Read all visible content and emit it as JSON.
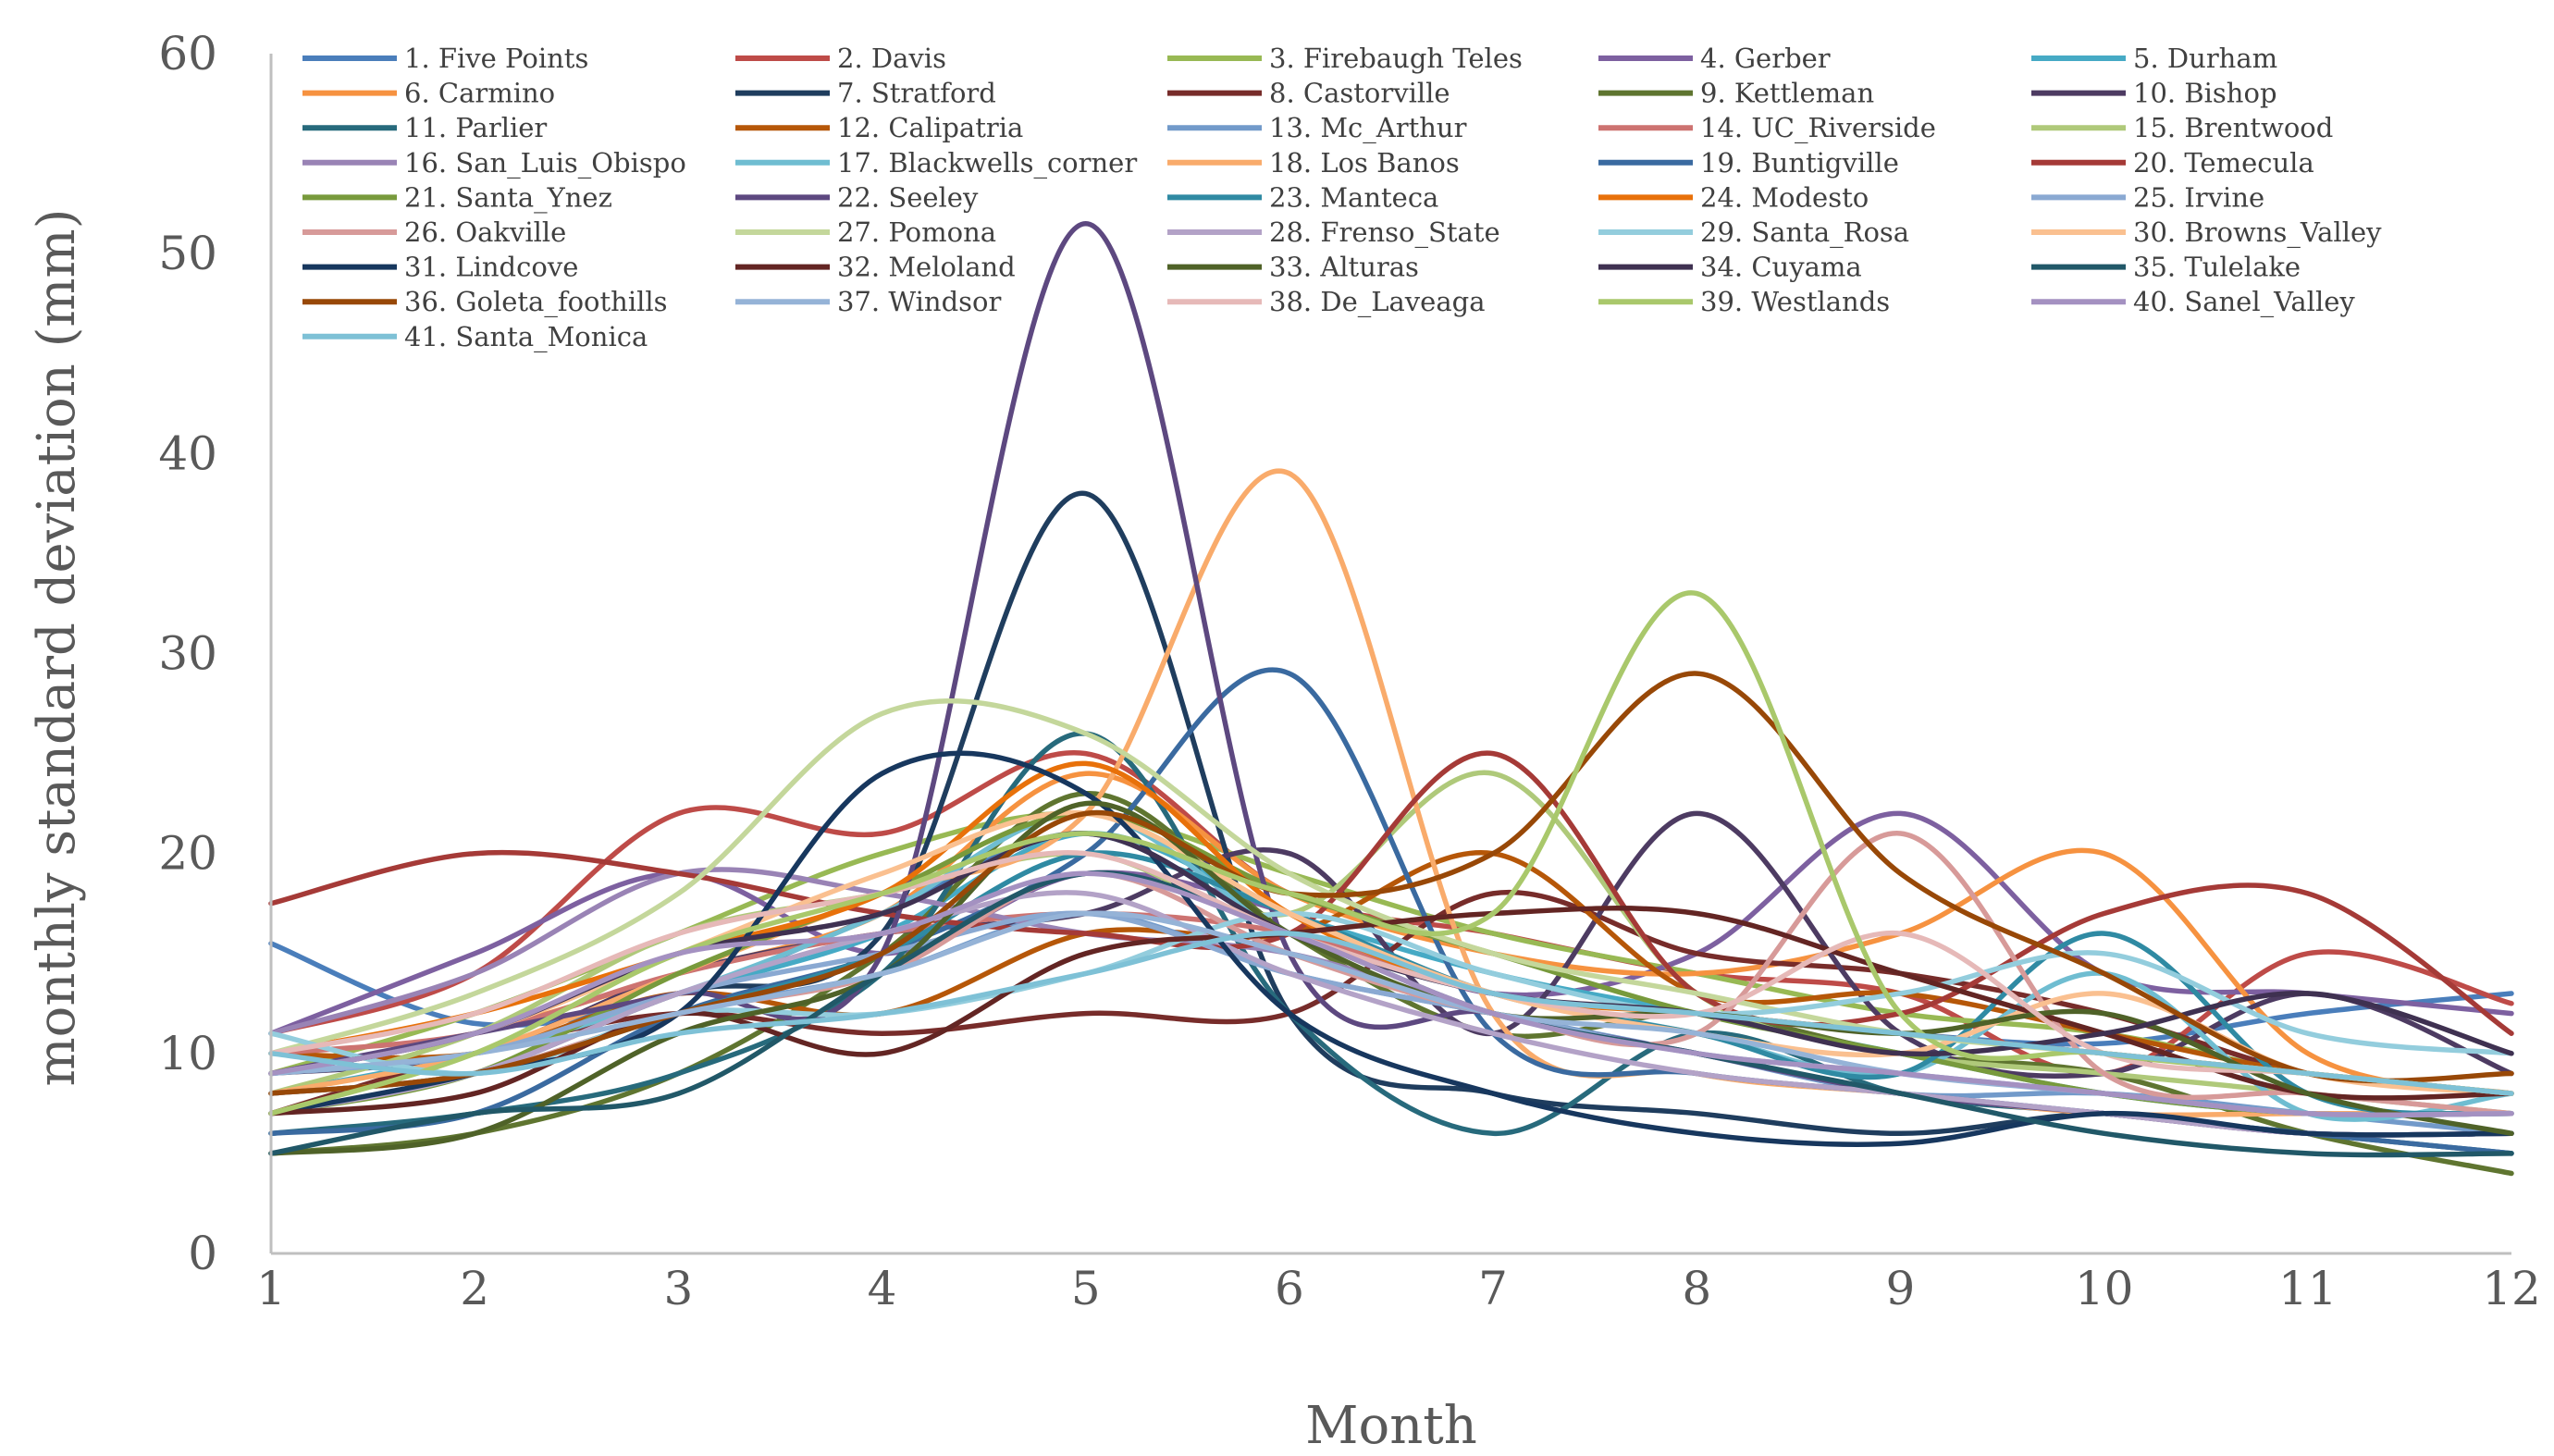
{
  "chart_data": {
    "type": "line",
    "title": "",
    "xlabel": "Month",
    "ylabel": "monthly standard deviation (mm)",
    "xlim": [
      1,
      12
    ],
    "ylim": [
      0,
      60
    ],
    "x": [
      1,
      2,
      3,
      4,
      5,
      6,
      7,
      8,
      9,
      10,
      11,
      12
    ],
    "xticks": [
      "1",
      "2",
      "3",
      "4",
      "5",
      "6",
      "7",
      "8",
      "9",
      "10",
      "11",
      "12"
    ],
    "yticks": [
      "0",
      "10",
      "20",
      "30",
      "40",
      "50",
      "60"
    ],
    "grid": false,
    "legend_position": "top",
    "series": [
      {
        "name": "1. Five Points",
        "color": "#4a7ebb",
        "values": [
          15.5,
          11.5,
          13,
          17,
          21,
          16,
          13,
          12,
          11,
          10.5,
          12,
          13
        ]
      },
      {
        "name": "2. Davis",
        "color": "#be4b48",
        "values": [
          11,
          14,
          22,
          21,
          25,
          18,
          16,
          14,
          13,
          9,
          15,
          12.5
        ]
      },
      {
        "name": "3. Firebaugh Teles",
        "color": "#98b954",
        "values": [
          9,
          12,
          16,
          20,
          22,
          19,
          16,
          14,
          12,
          11,
          9,
          8
        ]
      },
      {
        "name": "4. Gerber",
        "color": "#7d60a0",
        "values": [
          11,
          15,
          19,
          15,
          19,
          17,
          13,
          15,
          22,
          14,
          13,
          12
        ]
      },
      {
        "name": "5. Durham",
        "color": "#46aac5",
        "values": [
          8,
          10,
          13,
          16,
          21,
          17,
          14,
          12,
          10,
          8,
          7,
          7
        ]
      },
      {
        "name": "6. Carmino",
        "color": "#f69240",
        "values": [
          9,
          11,
          14,
          17,
          24,
          18,
          15,
          14,
          16,
          20,
          10,
          8
        ]
      },
      {
        "name": "7. Stratford",
        "color": "#1f3d5e",
        "values": [
          7,
          9,
          13,
          16,
          38,
          12,
          8,
          7,
          6,
          7,
          6,
          6
        ]
      },
      {
        "name": "8. Castorville",
        "color": "#772c2a",
        "values": [
          7,
          10,
          12,
          11,
          12,
          12,
          18,
          15,
          14,
          12,
          9,
          8
        ]
      },
      {
        "name": "9. Kettleman",
        "color": "#5f7530",
        "values": [
          5,
          6,
          9,
          15,
          23,
          16,
          11,
          12,
          10,
          9,
          6,
          4
        ]
      },
      {
        "name": "10. Bishop",
        "color": "#4d3b62",
        "values": [
          9,
          10,
          14,
          16,
          17,
          20,
          11,
          22,
          11,
          9,
          13,
          9
        ]
      },
      {
        "name": "11. Parlier",
        "color": "#276a7c",
        "values": [
          6,
          7,
          9,
          14,
          26,
          12,
          6,
          11,
          8,
          7,
          6,
          5
        ]
      },
      {
        "name": "12. Calipatria",
        "color": "#b65708",
        "values": [
          10,
          10,
          13,
          12,
          16,
          16,
          20,
          13,
          13,
          11,
          9,
          8
        ]
      },
      {
        "name": "13. Mc_Arthur",
        "color": "#729aca",
        "values": [
          8,
          9,
          12,
          14,
          17,
          14,
          12,
          10,
          8,
          8,
          7,
          6
        ]
      },
      {
        "name": "14. UC_Riverside",
        "color": "#cd7371",
        "values": [
          10,
          11,
          14,
          16,
          17,
          16,
          13,
          12,
          11,
          10,
          9,
          8
        ]
      },
      {
        "name": "15. Brentwood",
        "color": "#afc97a",
        "values": [
          8,
          11,
          16,
          18,
          20,
          17,
          24,
          13,
          10,
          9,
          8,
          7
        ]
      },
      {
        "name": "16. San_Luis_Obispo",
        "color": "#9983b5",
        "values": [
          11,
          14,
          19,
          18,
          16,
          15,
          12,
          10,
          8,
          7,
          6,
          6
        ]
      },
      {
        "name": "17. Blackwells_corner",
        "color": "#6fbdd1",
        "values": [
          9,
          10,
          13,
          17,
          22,
          16,
          13,
          11,
          9,
          14,
          7,
          8
        ]
      },
      {
        "name": "18. Los Banos",
        "color": "#f9ab6b",
        "values": [
          8,
          10,
          14,
          18,
          22,
          39,
          12,
          9,
          8,
          7,
          7,
          7
        ]
      },
      {
        "name": "19. Buntigville",
        "color": "#3a6aa0",
        "values": [
          6,
          7,
          12,
          15,
          20,
          29,
          11,
          9,
          8,
          7,
          6,
          5
        ]
      },
      {
        "name": "20. Temecula",
        "color": "#a53a37",
        "values": [
          17.5,
          20,
          19,
          17,
          16,
          16,
          25,
          13,
          12,
          17,
          18,
          11
        ]
      },
      {
        "name": "21. Santa_Ynez",
        "color": "#789a3c",
        "values": [
          7,
          9,
          14,
          18,
          22,
          18,
          15,
          12,
          10,
          8,
          7,
          7
        ]
      },
      {
        "name": "22. Seeley",
        "color": "#5d4880",
        "values": [
          9,
          11,
          13,
          15,
          51.5,
          15,
          12,
          10,
          8,
          7,
          6,
          6
        ]
      },
      {
        "name": "23. Manteca",
        "color": "#2f8aa3",
        "values": [
          8,
          9,
          12,
          15,
          20,
          17,
          13,
          11,
          9,
          16,
          8,
          7
        ]
      },
      {
        "name": "24. Modesto",
        "color": "#e8710a",
        "values": [
          10,
          12,
          15,
          18,
          24.5,
          17,
          13,
          12,
          11,
          10,
          9,
          8
        ]
      },
      {
        "name": "25. Irvine",
        "color": "#8aa9d2",
        "values": [
          9,
          10,
          13,
          15,
          17,
          14,
          12,
          10,
          9,
          8,
          7,
          7
        ]
      },
      {
        "name": "26. Oakville",
        "color": "#d79a99",
        "values": [
          8,
          9,
          12,
          14,
          19,
          15,
          12,
          11,
          21,
          9,
          8,
          7
        ]
      },
      {
        "name": "27. Pomona",
        "color": "#c4d79b",
        "values": [
          10,
          13,
          18,
          27,
          26,
          19,
          15,
          13,
          11,
          10,
          9,
          8
        ]
      },
      {
        "name": "28. Frenso_State",
        "color": "#b3a2c7",
        "values": [
          7,
          9,
          13,
          16,
          18,
          14,
          11,
          9,
          8,
          7,
          6,
          6
        ]
      },
      {
        "name": "29. Santa_Rosa",
        "color": "#93cddd",
        "values": [
          11,
          9,
          12,
          12,
          14,
          17,
          14,
          12,
          13,
          15,
          11,
          10
        ]
      },
      {
        "name": "30. Browns_Valley",
        "color": "#fac090",
        "values": [
          9,
          11,
          15,
          19,
          22,
          17,
          13,
          11,
          10,
          13,
          9,
          8
        ]
      },
      {
        "name": "31. Lindcove",
        "color": "#17375e",
        "values": [
          7,
          9,
          12,
          24,
          23,
          12,
          8,
          6,
          5.5,
          7,
          6,
          6
        ]
      },
      {
        "name": "32. Meloland",
        "color": "#632523",
        "values": [
          7,
          8,
          12,
          10,
          15,
          16,
          17,
          17,
          14,
          11,
          8,
          8
        ]
      },
      {
        "name": "33. Alturas",
        "color": "#4f6228",
        "values": [
          5,
          6,
          11,
          14,
          22.5,
          16,
          12,
          12,
          11,
          12,
          8,
          6
        ]
      },
      {
        "name": "34. Cuyama",
        "color": "#3f3151",
        "values": [
          9,
          11,
          15,
          17,
          21,
          16,
          13,
          12,
          10,
          11,
          13,
          10
        ]
      },
      {
        "name": "35. Tulelake",
        "color": "#215868",
        "values": [
          5,
          7,
          8,
          14,
          19,
          16,
          12,
          10,
          8,
          6,
          5,
          5
        ]
      },
      {
        "name": "36. Goleta_foothills",
        "color": "#984807",
        "values": [
          8,
          9,
          12,
          15,
          22,
          18,
          20,
          29,
          19,
          14,
          9,
          9
        ]
      },
      {
        "name": "37. Windsor",
        "color": "#95b3d7",
        "values": [
          9,
          10,
          12,
          14,
          17,
          15,
          12,
          11,
          9,
          8,
          7,
          7
        ]
      },
      {
        "name": "38. De_Laveaga",
        "color": "#e6b9b8",
        "values": [
          10,
          12,
          16,
          18,
          20,
          16,
          13,
          12,
          16,
          10,
          9,
          8
        ]
      },
      {
        "name": "39. Westlands",
        "color": "#a9c86b",
        "values": [
          7,
          10,
          15,
          18,
          21,
          18,
          17,
          33,
          12,
          10,
          9,
          8
        ]
      },
      {
        "name": "40. Sanel_Valley",
        "color": "#a491c1",
        "values": [
          9,
          11,
          15,
          16,
          19,
          16,
          12,
          10,
          9,
          8,
          7,
          7
        ]
      },
      {
        "name": "41. Santa_Monica",
        "color": "#7ec1d6",
        "values": [
          10,
          9,
          11,
          12,
          14,
          16,
          13,
          12,
          11,
          10,
          9,
          8
        ]
      }
    ]
  }
}
